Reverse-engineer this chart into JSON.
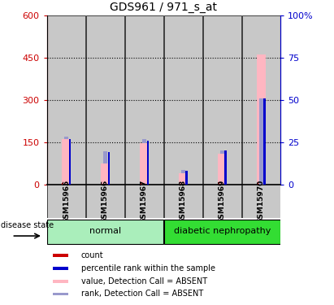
{
  "title": "GDS961 / 971_s_at",
  "samples": [
    "GSM15965",
    "GSM15966",
    "GSM15967",
    "GSM15968",
    "GSM15969",
    "GSM15970"
  ],
  "value_absent": [
    160,
    75,
    148,
    40,
    110,
    460
  ],
  "rank_absent_top": [
    170,
    118,
    160,
    52,
    122,
    305
  ],
  "count_values": [
    5,
    3,
    4,
    2,
    8,
    4
  ],
  "percentile_values": [
    27,
    19,
    26,
    8,
    20,
    51
  ],
  "ylim_left": [
    0,
    600
  ],
  "ylim_right": [
    0,
    100
  ],
  "yticks_left": [
    0,
    150,
    300,
    450,
    600
  ],
  "yticks_right": [
    0,
    25,
    50,
    75,
    100
  ],
  "grid_values": [
    150,
    300,
    450
  ],
  "color_count": "#cc0000",
  "color_percentile": "#0000cc",
  "color_value_absent": "#FFB6C1",
  "color_rank_absent": "#9999CC",
  "bar_bg_color": "#C8C8C8",
  "group_bg_normal": "#AAEEBB",
  "group_bg_diabetic": "#33DD33",
  "title_fontsize": 10,
  "axis_label_color_left": "#cc0000",
  "axis_label_color_right": "#0000cc",
  "fig_width": 4.11,
  "fig_height": 3.75,
  "dpi": 100
}
